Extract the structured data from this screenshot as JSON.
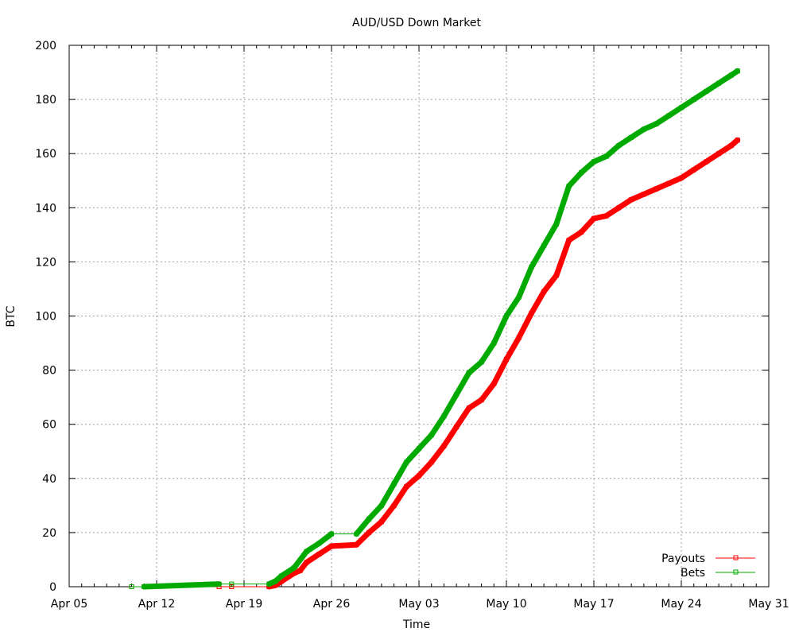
{
  "chart_data": {
    "type": "line",
    "title": "AUD/USD Down Market",
    "xlabel": "Time",
    "ylabel": "BTC",
    "x_axis": "date",
    "xlim": [
      "2014-04-05",
      "2014-05-31"
    ],
    "ylim": [
      0,
      200
    ],
    "x_ticks": [
      "Apr 05",
      "Apr 12",
      "Apr 19",
      "Apr 26",
      "May 03",
      "May 10",
      "May 17",
      "May 24",
      "May 31"
    ],
    "y_ticks": [
      0,
      20,
      40,
      60,
      80,
      100,
      120,
      140,
      160,
      180,
      200
    ],
    "grid": true,
    "legend_position": "bottom-right",
    "series": [
      {
        "name": "Payouts",
        "color": "#ff0000",
        "points": [
          [
            "2014-04-10",
            0
          ],
          [
            "2014-04-11",
            0
          ],
          [
            "2014-04-17",
            0
          ],
          [
            "2014-04-18",
            0
          ],
          [
            "2014-04-21",
            0
          ],
          [
            "2014-04-21 12:00",
            0.5
          ],
          [
            "2014-04-22",
            2
          ],
          [
            "2014-04-23",
            5
          ],
          [
            "2014-04-23 12:00",
            6
          ],
          [
            "2014-04-24",
            9
          ],
          [
            "2014-04-25",
            12
          ],
          [
            "2014-04-26",
            15
          ],
          [
            "2014-04-28",
            15.5
          ],
          [
            "2014-04-29",
            20
          ],
          [
            "2014-04-30",
            24
          ],
          [
            "2014-05-01",
            30
          ],
          [
            "2014-05-02",
            37
          ],
          [
            "2014-05-03",
            41
          ],
          [
            "2014-05-04",
            46
          ],
          [
            "2014-05-05",
            52
          ],
          [
            "2014-05-06",
            59
          ],
          [
            "2014-05-07",
            66
          ],
          [
            "2014-05-08",
            69
          ],
          [
            "2014-05-09",
            75
          ],
          [
            "2014-05-10",
            84
          ],
          [
            "2014-05-11",
            92
          ],
          [
            "2014-05-12",
            101
          ],
          [
            "2014-05-13",
            109
          ],
          [
            "2014-05-14",
            115
          ],
          [
            "2014-05-15",
            128
          ],
          [
            "2014-05-16",
            131
          ],
          [
            "2014-05-17",
            136
          ],
          [
            "2014-05-18",
            137
          ],
          [
            "2014-05-19",
            140
          ],
          [
            "2014-05-20",
            143
          ],
          [
            "2014-05-21",
            145
          ],
          [
            "2014-05-22",
            147
          ],
          [
            "2014-05-23",
            149
          ],
          [
            "2014-05-24",
            151
          ],
          [
            "2014-05-25",
            154
          ],
          [
            "2014-05-26",
            157
          ],
          [
            "2014-05-27",
            160
          ],
          [
            "2014-05-28",
            163
          ],
          [
            "2014-05-28 12:00",
            165
          ]
        ]
      },
      {
        "name": "Bets",
        "color": "#00aa00",
        "points": [
          [
            "2014-04-10",
            0
          ],
          [
            "2014-04-11",
            0
          ],
          [
            "2014-04-17",
            1
          ],
          [
            "2014-04-18",
            1
          ],
          [
            "2014-04-21",
            1
          ],
          [
            "2014-04-21 12:00",
            2
          ],
          [
            "2014-04-22",
            4
          ],
          [
            "2014-04-23",
            7
          ],
          [
            "2014-04-24",
            13
          ],
          [
            "2014-04-25",
            16
          ],
          [
            "2014-04-26",
            19.5
          ],
          [
            "2014-04-28",
            19.5
          ],
          [
            "2014-04-29",
            25
          ],
          [
            "2014-04-30",
            30
          ],
          [
            "2014-05-01",
            38
          ],
          [
            "2014-05-02",
            46
          ],
          [
            "2014-05-03",
            51
          ],
          [
            "2014-05-04",
            56
          ],
          [
            "2014-05-05",
            63
          ],
          [
            "2014-05-06",
            71
          ],
          [
            "2014-05-07",
            79
          ],
          [
            "2014-05-08",
            83
          ],
          [
            "2014-05-09",
            90
          ],
          [
            "2014-05-10",
            100
          ],
          [
            "2014-05-11",
            107
          ],
          [
            "2014-05-12",
            118
          ],
          [
            "2014-05-13",
            126
          ],
          [
            "2014-05-14",
            134
          ],
          [
            "2014-05-15",
            148
          ],
          [
            "2014-05-16",
            153
          ],
          [
            "2014-05-17",
            157
          ],
          [
            "2014-05-18",
            159
          ],
          [
            "2014-05-19",
            163
          ],
          [
            "2014-05-20",
            166
          ],
          [
            "2014-05-21",
            169
          ],
          [
            "2014-05-22",
            171
          ],
          [
            "2014-05-23",
            174
          ],
          [
            "2014-05-24",
            177
          ],
          [
            "2014-05-25",
            180
          ],
          [
            "2014-05-26",
            183
          ],
          [
            "2014-05-27",
            186
          ],
          [
            "2014-05-28",
            189
          ],
          [
            "2014-05-28 12:00",
            190.5
          ]
        ]
      }
    ]
  }
}
